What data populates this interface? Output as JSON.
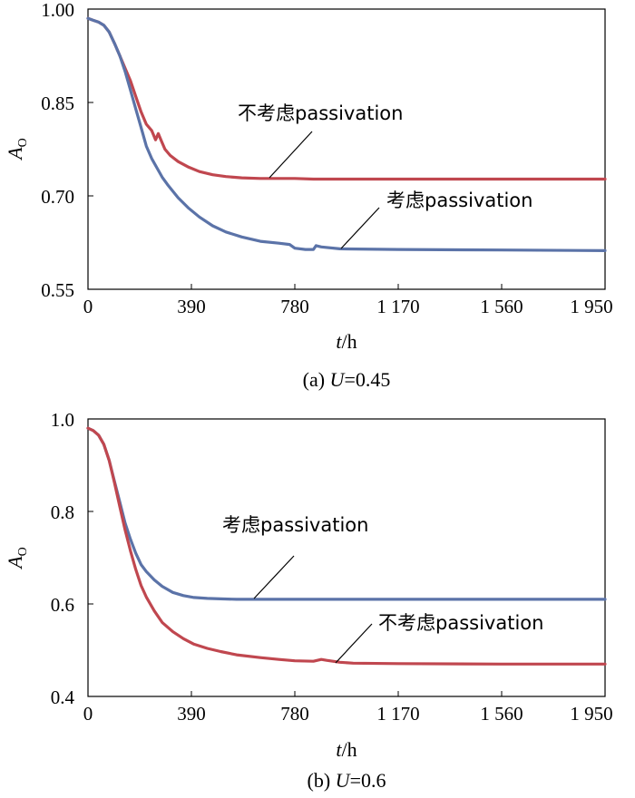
{
  "chart_data": [
    {
      "type": "line",
      "caption_prefix": "(a) ",
      "caption_var": "U",
      "caption_value": "=0.45",
      "xlabel_var": "t",
      "xlabel_unit": "/h",
      "ylabel_main": "A",
      "ylabel_sub": "O",
      "xlim": [
        0,
        1950
      ],
      "ylim": [
        0.55,
        1.0
      ],
      "xticks": [
        0,
        390,
        780,
        1170,
        1560,
        1950
      ],
      "xtick_labels": [
        "0",
        "390",
        "780",
        "1 170",
        "1 560",
        "1 950"
      ],
      "yticks": [
        0.55,
        0.7,
        0.85,
        1.0
      ],
      "ytick_labels": [
        "0.55",
        "0.70",
        "0.85",
        "1.00"
      ],
      "series": [
        {
          "name": "不考虑passivation",
          "color": "#c0474f",
          "x": [
            0,
            20,
            40,
            60,
            80,
            100,
            120,
            140,
            160,
            180,
            200,
            220,
            240,
            255,
            265,
            275,
            290,
            310,
            340,
            380,
            420,
            470,
            520,
            580,
            650,
            720,
            780,
            850,
            950,
            1170,
            1560,
            1950
          ],
          "y": [
            0.985,
            0.982,
            0.979,
            0.974,
            0.963,
            0.945,
            0.925,
            0.905,
            0.885,
            0.86,
            0.835,
            0.815,
            0.805,
            0.79,
            0.8,
            0.79,
            0.775,
            0.765,
            0.755,
            0.746,
            0.739,
            0.734,
            0.731,
            0.729,
            0.728,
            0.728,
            0.728,
            0.727,
            0.727,
            0.727,
            0.727,
            0.727
          ]
        },
        {
          "name": "考虑passivation",
          "color": "#5b73a8",
          "x": [
            0,
            20,
            40,
            60,
            80,
            100,
            120,
            140,
            160,
            180,
            200,
            220,
            240,
            260,
            280,
            300,
            340,
            380,
            420,
            470,
            520,
            580,
            650,
            720,
            760,
            780,
            820,
            850,
            860,
            880,
            950,
            1170,
            1560,
            1950
          ],
          "y": [
            0.985,
            0.982,
            0.979,
            0.974,
            0.963,
            0.945,
            0.925,
            0.9,
            0.87,
            0.84,
            0.81,
            0.78,
            0.76,
            0.745,
            0.73,
            0.718,
            0.697,
            0.68,
            0.666,
            0.652,
            0.642,
            0.634,
            0.627,
            0.624,
            0.622,
            0.616,
            0.614,
            0.614,
            0.62,
            0.618,
            0.615,
            0.614,
            0.613,
            0.612
          ]
        }
      ],
      "annotations": [
        {
          "text": "不考虑passivation",
          "target_x": 800,
          "target_y": 0.728
        },
        {
          "text": "考虑passivation",
          "target_x": 880,
          "target_y": 0.616
        }
      ]
    },
    {
      "type": "line",
      "caption_prefix": "(b) ",
      "caption_var": "U",
      "caption_value": "=0.6",
      "xlabel_var": "t",
      "xlabel_unit": "/h",
      "ylabel_main": "A",
      "ylabel_sub": "O",
      "xlim": [
        0,
        1950
      ],
      "ylim": [
        0.4,
        1.0
      ],
      "xticks": [
        0,
        390,
        780,
        1170,
        1560,
        1950
      ],
      "xtick_labels": [
        "0",
        "390",
        "780",
        "1 170",
        "1 560",
        "1 950"
      ],
      "yticks": [
        0.4,
        0.6,
        0.8,
        1.0
      ],
      "ytick_labels": [
        "0.4",
        "0.6",
        "0.8",
        "1.0"
      ],
      "series": [
        {
          "name": "考虑passivation",
          "color": "#5b73a8",
          "x": [
            0,
            20,
            40,
            60,
            80,
            100,
            120,
            140,
            160,
            180,
            200,
            220,
            250,
            280,
            320,
            360,
            400,
            450,
            500,
            560,
            650,
            780,
            1170,
            1560,
            1950
          ],
          "y": [
            0.98,
            0.975,
            0.965,
            0.945,
            0.91,
            0.865,
            0.82,
            0.775,
            0.74,
            0.71,
            0.685,
            0.67,
            0.652,
            0.638,
            0.625,
            0.618,
            0.614,
            0.612,
            0.611,
            0.61,
            0.61,
            0.61,
            0.61,
            0.61,
            0.61
          ]
        },
        {
          "name": "不考虑passivation",
          "color": "#c0474f",
          "x": [
            0,
            20,
            40,
            60,
            80,
            100,
            120,
            140,
            160,
            180,
            200,
            220,
            250,
            280,
            320,
            360,
            400,
            450,
            500,
            560,
            650,
            720,
            780,
            850,
            880,
            900,
            950,
            1000,
            1170,
            1560,
            1950
          ],
          "y": [
            0.98,
            0.975,
            0.965,
            0.945,
            0.91,
            0.862,
            0.81,
            0.76,
            0.715,
            0.675,
            0.64,
            0.615,
            0.585,
            0.56,
            0.54,
            0.525,
            0.513,
            0.504,
            0.497,
            0.49,
            0.484,
            0.48,
            0.477,
            0.476,
            0.48,
            0.478,
            0.474,
            0.472,
            0.471,
            0.47,
            0.47
          ]
        }
      ],
      "annotations": [
        {
          "text": "考虑passivation",
          "target_x": 630,
          "target_y": 0.611
        },
        {
          "text": "不考虑passivation",
          "target_x": 920,
          "target_y": 0.476
        }
      ]
    }
  ]
}
